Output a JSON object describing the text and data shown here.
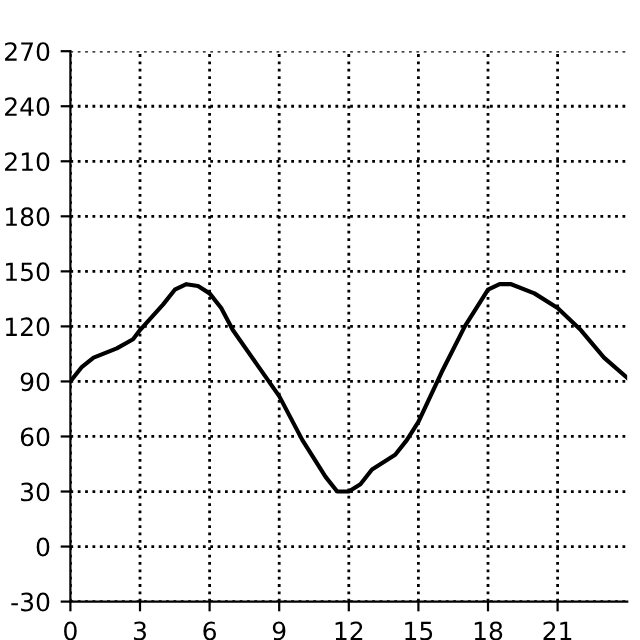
{
  "chart_data": {
    "type": "line",
    "x": [
      0,
      0.5,
      1,
      2,
      2.7,
      3,
      4,
      4.5,
      5,
      5.5,
      6,
      6.5,
      7,
      8,
      9,
      9.5,
      10,
      11,
      11.5,
      12,
      12.5,
      13,
      14,
      14.5,
      15,
      16,
      17,
      18,
      18.5,
      19,
      20,
      21,
      22,
      23,
      24
    ],
    "series": [
      {
        "color": "#000000",
        "values": [
          90,
          98,
          103,
          108,
          113,
          118,
          132,
          140,
          143,
          142,
          138,
          130,
          118,
          100,
          82,
          70,
          58,
          38,
          30,
          30,
          34,
          42,
          50,
          58,
          68,
          95,
          120,
          140,
          143,
          143,
          138,
          130,
          118,
          103,
          92
        ]
      }
    ],
    "xlim": [
      0,
      24
    ],
    "xticks": [
      0,
      3,
      6,
      9,
      12,
      15,
      18,
      21
    ],
    "ylim": [
      -30,
      270
    ],
    "yticks": [
      -30,
      0,
      30,
      60,
      90,
      120,
      150,
      180,
      210,
      240,
      270
    ],
    "grid": true,
    "line_style": "solid",
    "marker": "none"
  }
}
